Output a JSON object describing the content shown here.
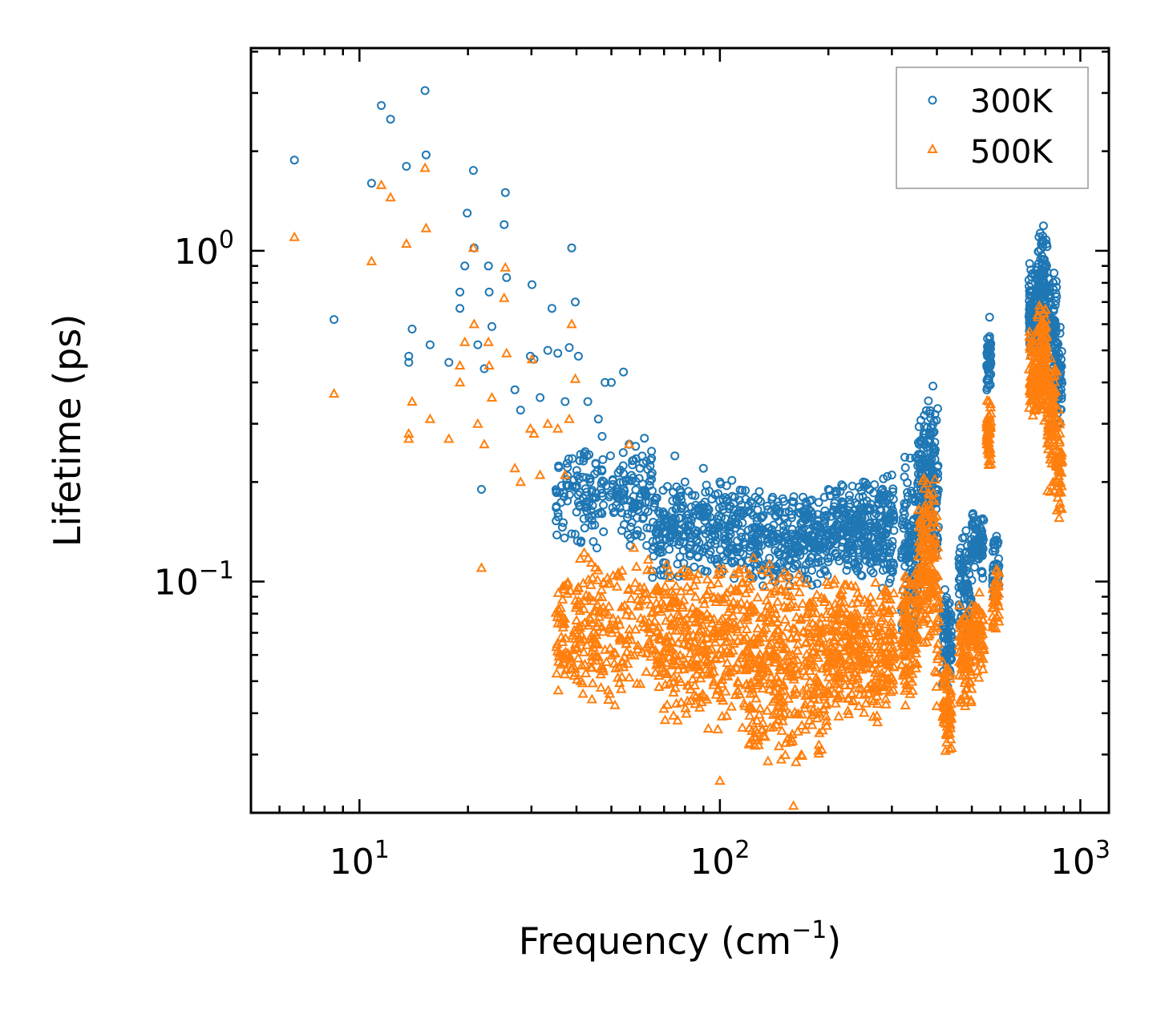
{
  "chart_data": {
    "type": "scatter",
    "title": "",
    "xlabel": "Frequency (cm⁻¹)",
    "xlabel_main": "Frequency (cm",
    "xlabel_exp": "−1",
    "xlabel_close": ")",
    "ylabel": "Lifetime (ps)",
    "xscale": "log",
    "yscale": "log",
    "xlim": [
      5,
      1200
    ],
    "ylim": [
      0.02,
      4.1
    ],
    "x_ticks": [
      {
        "value": 10,
        "base": "10",
        "exp": "1"
      },
      {
        "value": 100,
        "base": "10",
        "exp": "2"
      },
      {
        "value": 1000,
        "base": "10",
        "exp": "3"
      }
    ],
    "y_ticks": [
      {
        "value": 0.1,
        "base": "10",
        "exp": "−1"
      },
      {
        "value": 1,
        "base": "10",
        "exp": "0"
      }
    ],
    "legend": {
      "position": "upper right"
    },
    "series": [
      {
        "name": "300K",
        "marker": "circle",
        "color": "#1f77b4",
        "points": [
          [
            6.6,
            1.88
          ],
          [
            8.5,
            0.62
          ],
          [
            10.8,
            1.6
          ],
          [
            11.5,
            2.75
          ],
          [
            12.2,
            2.5
          ],
          [
            13.5,
            1.8
          ],
          [
            13.7,
            0.48
          ],
          [
            13.7,
            0.46
          ],
          [
            14,
            0.58
          ],
          [
            15.2,
            3.05
          ],
          [
            15.3,
            1.95
          ],
          [
            15.7,
            0.52
          ],
          [
            17.7,
            0.46
          ],
          [
            19,
            0.75
          ],
          [
            19,
            0.67
          ],
          [
            19.6,
            0.9
          ],
          [
            19.9,
            1.3
          ],
          [
            20.7,
            1.75
          ],
          [
            20.8,
            1.02
          ],
          [
            21.3,
            0.52
          ],
          [
            21.8,
            0.19
          ],
          [
            22.2,
            0.44
          ],
          [
            22.8,
            0.9
          ],
          [
            22.9,
            0.75
          ],
          [
            23.3,
            0.59
          ],
          [
            25.2,
            1.2
          ],
          [
            25.4,
            1.5
          ],
          [
            25.6,
            0.83
          ],
          [
            27,
            0.38
          ],
          [
            28,
            0.33
          ],
          [
            29.8,
            0.48
          ],
          [
            30.1,
            0.79
          ],
          [
            30.5,
            0.47
          ],
          [
            31.7,
            0.36
          ],
          [
            33.3,
            0.5
          ],
          [
            34.2,
            0.67
          ],
          [
            35.5,
            0.49
          ],
          [
            37.2,
            0.35
          ],
          [
            38.2,
            0.51
          ],
          [
            38.8,
            1.02
          ],
          [
            39.7,
            0.7
          ],
          [
            40.5,
            0.48
          ],
          [
            43,
            0.35
          ],
          [
            46,
            0.31
          ],
          [
            48,
            0.4
          ],
          [
            50,
            0.4
          ],
          [
            54,
            0.43
          ],
          [
            56,
            0.26
          ],
          [
            60,
            0.22
          ],
          [
            75,
            0.24
          ],
          [
            80,
            0.2
          ],
          [
            90,
            0.22
          ],
          [
            100,
            0.2
          ],
          [
            110,
            0.18
          ],
          [
            120,
            0.17
          ],
          [
            140,
            0.18
          ],
          [
            170,
            0.18
          ],
          [
            200,
            0.19
          ],
          [
            250,
            0.2
          ],
          [
            300,
            0.21
          ],
          [
            390,
            0.39
          ],
          [
            560,
            0.63
          ],
          [
            790,
            1.19
          ]
        ],
        "bands": [
          [
            35,
            65,
            0.12,
            0.28,
            220
          ],
          [
            65,
            120,
            0.1,
            0.21,
            300
          ],
          [
            120,
            200,
            0.095,
            0.19,
            300
          ],
          [
            200,
            280,
            0.1,
            0.205,
            240
          ],
          [
            280,
            305,
            0.09,
            0.22,
            80
          ],
          [
            318,
            355,
            0.06,
            0.26,
            120
          ],
          [
            355,
            395,
            0.12,
            0.37,
            160
          ],
          [
            395,
            405,
            0.09,
            0.38,
            30
          ],
          [
            415,
            440,
            0.045,
            0.1,
            80
          ],
          [
            460,
            500,
            0.06,
            0.15,
            90
          ],
          [
            500,
            540,
            0.1,
            0.17,
            70
          ],
          [
            550,
            565,
            0.36,
            0.6,
            50
          ],
          [
            570,
            595,
            0.08,
            0.15,
            40
          ],
          [
            720,
            760,
            0.45,
            0.95,
            80
          ],
          [
            760,
            810,
            0.5,
            1.15,
            120
          ],
          [
            810,
            860,
            0.35,
            0.92,
            90
          ],
          [
            860,
            890,
            0.3,
            0.6,
            40
          ]
        ]
      },
      {
        "name": "500K",
        "marker": "triangle",
        "color": "#ff7f0e",
        "points": [
          [
            6.6,
            1.1
          ],
          [
            8.5,
            0.37
          ],
          [
            10.8,
            0.93
          ],
          [
            11.5,
            1.58
          ],
          [
            12.2,
            1.45
          ],
          [
            13.5,
            1.05
          ],
          [
            13.7,
            0.28
          ],
          [
            13.7,
            0.27
          ],
          [
            14,
            0.35
          ],
          [
            15.2,
            1.78
          ],
          [
            15.3,
            1.17
          ],
          [
            15.7,
            0.31
          ],
          [
            17.7,
            0.27
          ],
          [
            19,
            0.45
          ],
          [
            19,
            0.4
          ],
          [
            19.6,
            0.53
          ],
          [
            20.7,
            1.02
          ],
          [
            20.8,
            0.6
          ],
          [
            21.3,
            0.3
          ],
          [
            21.8,
            0.11
          ],
          [
            22.2,
            0.26
          ],
          [
            22.8,
            0.53
          ],
          [
            22.9,
            0.45
          ],
          [
            23.3,
            0.36
          ],
          [
            25.2,
            0.72
          ],
          [
            25.4,
            0.89
          ],
          [
            25.6,
            0.49
          ],
          [
            27,
            0.22
          ],
          [
            28,
            0.2
          ],
          [
            29.8,
            0.29
          ],
          [
            30.1,
            0.47
          ],
          [
            30.5,
            0.28
          ],
          [
            31.7,
            0.21
          ],
          [
            33.3,
            0.3
          ],
          [
            35.5,
            0.29
          ],
          [
            37.2,
            0.21
          ],
          [
            38.2,
            0.31
          ],
          [
            38.8,
            0.6
          ],
          [
            39.7,
            0.41
          ],
          [
            56,
            0.26
          ],
          [
            160,
            0.021
          ],
          [
            100,
            0.025
          ]
        ],
        "bands": [
          [
            35,
            65,
            0.04,
            0.13,
            260
          ],
          [
            65,
            120,
            0.035,
            0.12,
            380
          ],
          [
            120,
            200,
            0.026,
            0.12,
            380
          ],
          [
            200,
            280,
            0.035,
            0.11,
            260
          ],
          [
            280,
            305,
            0.04,
            0.1,
            80
          ],
          [
            318,
            355,
            0.04,
            0.12,
            120
          ],
          [
            355,
            395,
            0.06,
            0.23,
            160
          ],
          [
            395,
            405,
            0.04,
            0.2,
            30
          ],
          [
            415,
            440,
            0.03,
            0.06,
            80
          ],
          [
            460,
            500,
            0.04,
            0.09,
            90
          ],
          [
            500,
            540,
            0.05,
            0.1,
            70
          ],
          [
            550,
            565,
            0.22,
            0.37,
            50
          ],
          [
            570,
            595,
            0.07,
            0.11,
            40
          ],
          [
            720,
            760,
            0.28,
            0.6,
            80
          ],
          [
            760,
            810,
            0.3,
            0.72,
            120
          ],
          [
            810,
            860,
            0.18,
            0.5,
            90
          ],
          [
            860,
            890,
            0.15,
            0.35,
            40
          ]
        ]
      }
    ]
  }
}
